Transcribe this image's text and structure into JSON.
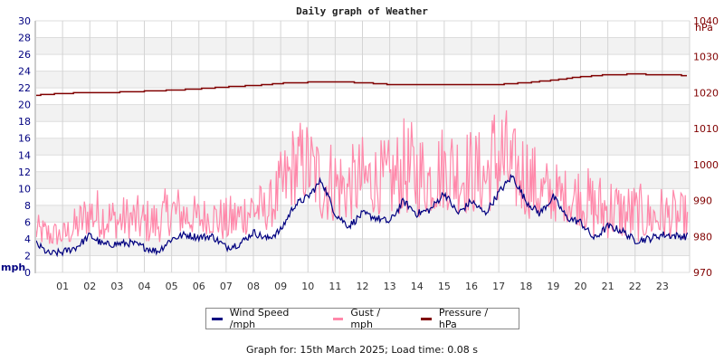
{
  "chart_data": {
    "type": "line",
    "title": "Daily graph of Weather",
    "xlabel": "",
    "ylabel_left": "mph",
    "ylabel_right": "hPa",
    "x_ticks": [
      "01",
      "02",
      "03",
      "04",
      "05",
      "06",
      "07",
      "08",
      "09",
      "10",
      "11",
      "12",
      "13",
      "14",
      "15",
      "16",
      "17",
      "18",
      "19",
      "20",
      "21",
      "22",
      "23"
    ],
    "xlim_hours": [
      0,
      24
    ],
    "ylim_left": [
      0,
      30
    ],
    "y_ticks_left": [
      0,
      2,
      4,
      6,
      8,
      10,
      12,
      14,
      16,
      18,
      20,
      22,
      24,
      26,
      28,
      30
    ],
    "ylim_right": [
      970,
      1040
    ],
    "y_ticks_right": [
      970,
      980,
      990,
      1000,
      1010,
      1020,
      1030,
      1040
    ],
    "grid": true,
    "legend_position": "bottom",
    "colors": {
      "wind": "#000080",
      "gust": "#ff88aa",
      "pressure": "#800000"
    },
    "series": [
      {
        "name": "Wind Speed /mph",
        "axis": "left",
        "x_hours": [
          0,
          0.5,
          1,
          1.5,
          2,
          2.5,
          3,
          3.5,
          4,
          4.5,
          5,
          5.5,
          6,
          6.5,
          7,
          7.5,
          8,
          8.5,
          9,
          9.5,
          10,
          10.5,
          11,
          11.5,
          12,
          12.5,
          13,
          13.5,
          14,
          14.5,
          15,
          15.5,
          16,
          16.5,
          17,
          17.5,
          18,
          18.5,
          19,
          19.5,
          20,
          20.5,
          21,
          21.5,
          22,
          22.5,
          23,
          23.7
        ],
        "values": [
          3.5,
          2.2,
          2.4,
          3.0,
          4.4,
          3.3,
          3.4,
          3.5,
          3.0,
          2.5,
          4.0,
          4.5,
          4.2,
          4.3,
          3.0,
          3.4,
          4.8,
          4.0,
          5.0,
          8.0,
          9.0,
          11.0,
          7.0,
          5.5,
          7.0,
          6.5,
          6.0,
          8.5,
          7.0,
          7.5,
          9.5,
          7.0,
          8.5,
          7.0,
          9.5,
          11.5,
          8.5,
          7.0,
          9.0,
          6.5,
          6.0,
          4.0,
          5.5,
          5.0,
          3.8,
          4.0,
          4.5,
          4.3
        ]
      },
      {
        "name": "Gust / mph",
        "axis": "left",
        "x_hours": [
          0,
          0.5,
          1,
          1.5,
          2,
          2.5,
          3,
          3.5,
          4,
          4.5,
          5,
          5.5,
          6,
          6.5,
          7,
          7.5,
          8,
          8.5,
          9,
          9.5,
          10,
          10.5,
          11,
          11.5,
          12,
          12.5,
          13,
          13.5,
          14,
          14.5,
          15,
          15.5,
          16,
          16.5,
          17,
          17.5,
          18,
          18.5,
          19,
          19.5,
          20,
          20.5,
          21,
          21.5,
          22,
          22.5,
          23,
          23.7
        ],
        "low": [
          3.5,
          3.0,
          3.2,
          3.5,
          4.5,
          4.0,
          4.0,
          4.0,
          3.5,
          3.5,
          4.5,
          4.5,
          4.5,
          4.5,
          3.5,
          4.0,
          5.0,
          5.0,
          6.0,
          8.0,
          8.5,
          6.0,
          6.0,
          6.0,
          7.0,
          7.0,
          6.5,
          7.0,
          6.5,
          7.0,
          7.5,
          7.0,
          7.0,
          7.0,
          7.5,
          7.5,
          6.5,
          6.0,
          6.0,
          6.0,
          5.5,
          4.0,
          4.0,
          4.0,
          3.5,
          4.0,
          4.0,
          4.0
        ],
        "high": [
          7.0,
          6.5,
          6.0,
          8.0,
          10.5,
          10.0,
          9.0,
          9.5,
          9.0,
          9.0,
          11.0,
          10.0,
          9.0,
          9.5,
          9.0,
          10.0,
          11.5,
          10.0,
          14.5,
          18.5,
          18.5,
          16.5,
          16.5,
          15.0,
          16.5,
          16.0,
          16.0,
          18.5,
          18.0,
          16.5,
          18.5,
          18.5,
          17.5,
          17.0,
          23.0,
          17.5,
          18.0,
          14.0,
          13.5,
          12.5,
          13.5,
          12.0,
          12.5,
          11.0,
          11.0,
          10.0,
          10.5,
          9.5
        ]
      },
      {
        "name": "Pressure / hPa",
        "axis": "right",
        "x_hours": [
          0,
          1,
          2,
          3,
          4,
          5,
          6,
          7,
          8,
          9,
          10,
          11,
          12,
          13,
          14,
          15,
          16,
          17,
          18,
          19,
          20,
          21,
          22,
          23,
          24
        ],
        "values": [
          1019.3,
          1019.8,
          1020.0,
          1020.1,
          1020.4,
          1020.7,
          1021.1,
          1021.6,
          1022.0,
          1022.6,
          1022.9,
          1023.0,
          1022.8,
          1022.3,
          1022.3,
          1022.2,
          1022.2,
          1022.3,
          1022.8,
          1023.5,
          1024.4,
          1025.0,
          1025.2,
          1025.0,
          1024.8
        ]
      }
    ]
  },
  "title": "Daily graph of Weather",
  "axes": {
    "left_unit": "mph",
    "right_unit": "hPa"
  },
  "legend": {
    "items": [
      {
        "label": "Wind Speed /mph",
        "color": "#000080"
      },
      {
        "label": "Gust / mph",
        "color": "#ff88aa"
      },
      {
        "label": "Pressure / hPa",
        "color": "#800000"
      }
    ]
  },
  "footer": "Graph for: 15th March 2025; Load time: 0.08 s"
}
